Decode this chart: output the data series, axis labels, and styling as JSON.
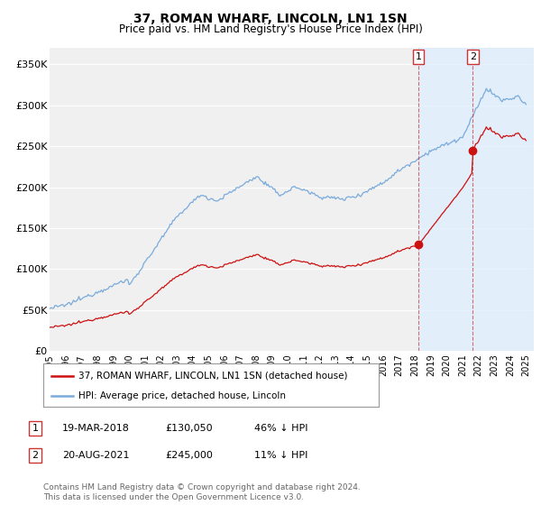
{
  "title": "37, ROMAN WHARF, LINCOLN, LN1 1SN",
  "subtitle": "Price paid vs. HM Land Registry's House Price Index (HPI)",
  "title_fontsize": 10,
  "subtitle_fontsize": 8.5,
  "ylabel_ticks": [
    "£0",
    "£50K",
    "£100K",
    "£150K",
    "£200K",
    "£250K",
    "£300K",
    "£350K"
  ],
  "ytick_values": [
    0,
    50000,
    100000,
    150000,
    200000,
    250000,
    300000,
    350000
  ],
  "ylim": [
    0,
    370000
  ],
  "xlim_start": 1995.0,
  "xlim_end": 2025.5,
  "hpi_color": "#7aabdb",
  "price_color": "#cc1111",
  "shade_color": "#ddeeff",
  "marker1_date": 2018.21,
  "marker1_price": 130050,
  "marker2_date": 2021.64,
  "marker2_price": 245000,
  "vline1_x": 2018.21,
  "vline2_x": 2021.64,
  "legend_label_red": "37, ROMAN WHARF, LINCOLN, LN1 1SN (detached house)",
  "legend_label_blue": "HPI: Average price, detached house, Lincoln",
  "footer": "Contains HM Land Registry data © Crown copyright and database right 2024.\nThis data is licensed under the Open Government Licence v3.0.",
  "background_color": "#ffffff",
  "plot_bg_color": "#f0f0f0"
}
